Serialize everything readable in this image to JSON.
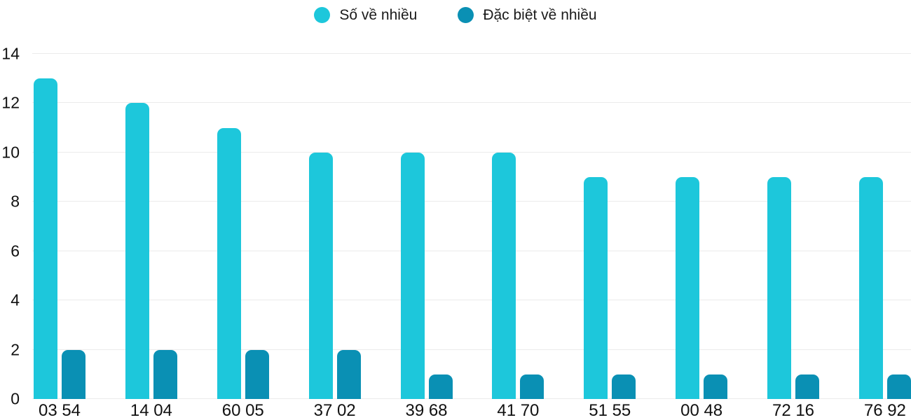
{
  "legend": {
    "items": [
      {
        "label": "Số về nhiều",
        "color": "#1dc7db"
      },
      {
        "label": "Đặc biệt về nhiều",
        "color": "#0a90b4"
      }
    ]
  },
  "chart_data": {
    "type": "bar",
    "title": "",
    "xlabel": "",
    "ylabel": "",
    "categories": [
      "03 54",
      "14 04",
      "60 05",
      "37 02",
      "39 68",
      "41 70",
      "51 55",
      "00 48",
      "72 16",
      "76 92"
    ],
    "series": [
      {
        "name": "Số về nhiều",
        "color": "#1dc7db",
        "values": [
          13,
          12,
          11,
          10,
          10,
          10,
          9,
          9,
          9,
          9
        ]
      },
      {
        "name": "Đặc biệt về nhiều",
        "color": "#0a90b4",
        "values": [
          2,
          2,
          2,
          2,
          1,
          1,
          1,
          1,
          1,
          1
        ]
      }
    ],
    "ylim": [
      0,
      14
    ],
    "yticks": [
      0,
      2,
      4,
      6,
      8,
      10,
      12,
      14
    ],
    "grid": true,
    "gridline_color": "#ebebeb",
    "legend_position": "top-center",
    "background_color": "#ffffff"
  }
}
